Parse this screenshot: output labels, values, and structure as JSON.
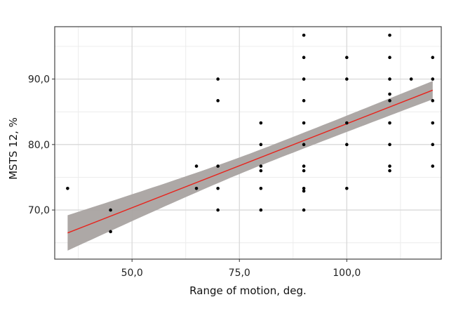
{
  "chart_data": {
    "type": "scatter",
    "title": "",
    "xlabel": "Range of motion, deg.",
    "ylabel": "MSTS 12, %",
    "xlim": [
      32,
      122
    ],
    "ylim": [
      62.5,
      98
    ],
    "x_ticks": [
      50,
      75,
      100
    ],
    "x_tick_labels": [
      "50,0",
      "75,0",
      "100,0"
    ],
    "y_ticks": [
      70,
      80,
      90
    ],
    "y_tick_labels": [
      "70,0",
      "80,0",
      "90,0"
    ],
    "grid": true,
    "legend": "none",
    "points": [
      [
        35,
        73.3
      ],
      [
        45,
        70.0
      ],
      [
        45,
        66.7
      ],
      [
        65,
        76.7
      ],
      [
        65,
        73.3
      ],
      [
        70,
        90.0
      ],
      [
        70,
        86.7
      ],
      [
        70,
        76.7
      ],
      [
        70,
        73.3
      ],
      [
        70,
        70.0
      ],
      [
        80,
        83.3
      ],
      [
        80,
        80.0
      ],
      [
        80,
        76.7
      ],
      [
        80,
        76.0
      ],
      [
        80,
        73.3
      ],
      [
        80,
        70.0
      ],
      [
        90,
        96.7
      ],
      [
        90,
        93.3
      ],
      [
        90,
        90.0
      ],
      [
        90,
        86.7
      ],
      [
        90,
        83.3
      ],
      [
        90,
        80.0
      ],
      [
        90,
        76.7
      ],
      [
        90,
        76.0
      ],
      [
        90,
        73.3
      ],
      [
        90,
        72.9
      ],
      [
        90,
        70.0
      ],
      [
        100,
        93.3
      ],
      [
        100,
        90.0
      ],
      [
        100,
        83.3
      ],
      [
        100,
        80.0
      ],
      [
        100,
        73.3
      ],
      [
        110,
        96.7
      ],
      [
        110,
        93.3
      ],
      [
        110,
        90.0
      ],
      [
        110,
        87.7
      ],
      [
        110,
        86.7
      ],
      [
        110,
        83.3
      ],
      [
        110,
        80.0
      ],
      [
        110,
        76.7
      ],
      [
        110,
        76.0
      ],
      [
        115,
        90.0
      ],
      [
        120,
        93.3
      ],
      [
        120,
        90.0
      ],
      [
        120,
        86.7
      ],
      [
        120,
        83.3
      ],
      [
        120,
        80.0
      ],
      [
        120,
        76.7
      ]
    ],
    "trend_line": {
      "type": "linear",
      "x": [
        35,
        120
      ],
      "y": [
        66.5,
        88.3
      ],
      "ci_lower": [
        63.8,
        86.9
      ],
      "ci_upper": [
        69.2,
        89.7
      ],
      "ci_at_center": 1.2,
      "x_center": 83
    },
    "colors": {
      "points": "#000000",
      "line": "#e8231c",
      "band": "#a9a3a1",
      "grid_major": "#d9d9d9",
      "grid_minor": "#ececec",
      "panel_border": "#444444"
    }
  }
}
